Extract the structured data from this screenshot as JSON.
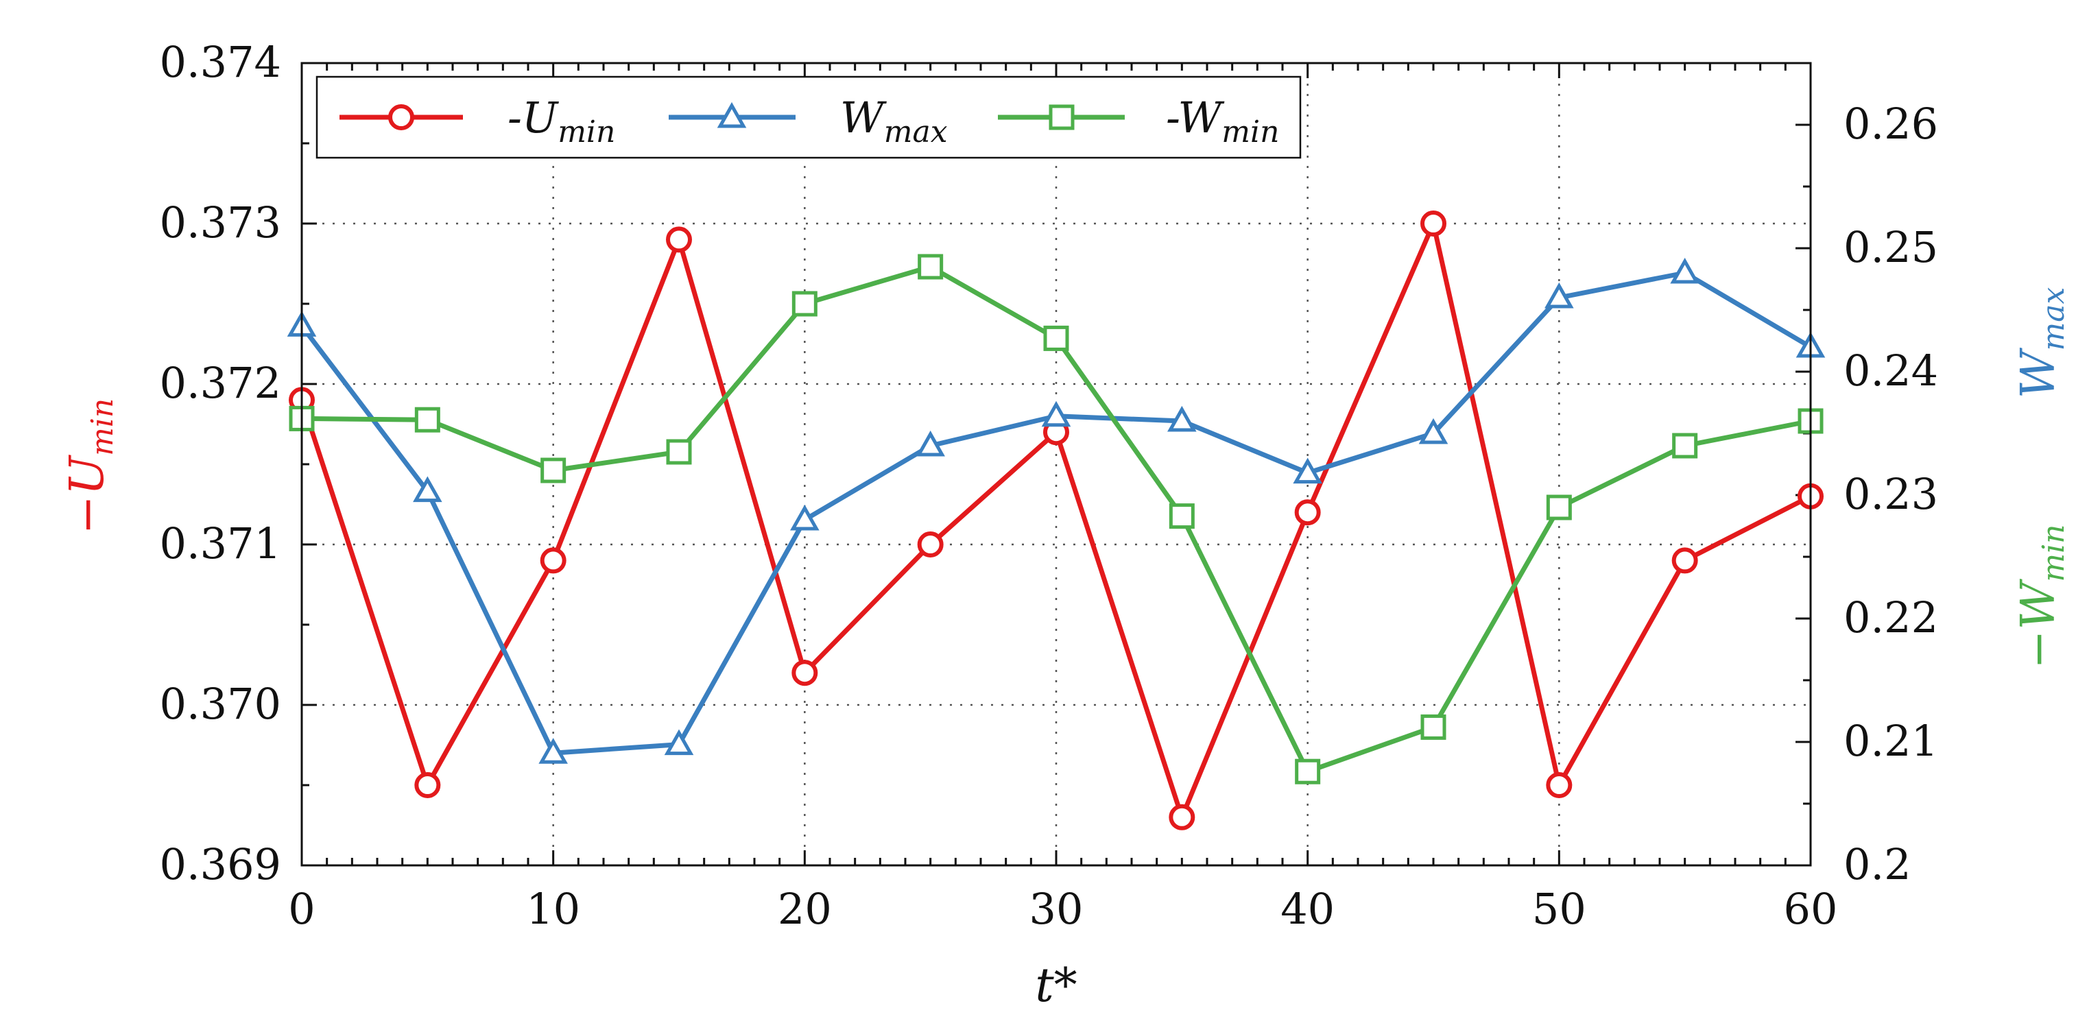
{
  "chart_data": {
    "type": "line",
    "title": "",
    "xlabel": "t*",
    "ylabel_left": {
      "base": "−U",
      "sub": "min"
    },
    "ylabel_right_top": {
      "base": "W",
      "sub": "max"
    },
    "ylabel_right_bottom": {
      "base": "−W",
      "sub": "min"
    },
    "x": [
      0,
      5,
      10,
      15,
      20,
      25,
      30,
      35,
      40,
      45,
      50,
      55,
      60
    ],
    "xlim": [
      0,
      60
    ],
    "x_ticks": [
      0,
      10,
      20,
      30,
      40,
      50,
      60
    ],
    "x_tick_labels": [
      "0",
      "10",
      "20",
      "30",
      "40",
      "50",
      "60"
    ],
    "ylim_left": [
      0.369,
      0.374
    ],
    "y_left_ticks": [
      0.369,
      0.37,
      0.371,
      0.372,
      0.373,
      0.374
    ],
    "y_left_tick_labels": [
      "0.369",
      "0.370",
      "0.371",
      "0.372",
      "0.373",
      "0.374"
    ],
    "ylim_right": [
      0.2,
      0.265
    ],
    "y_right_ticks": [
      0.2,
      0.21,
      0.22,
      0.23,
      0.24,
      0.25,
      0.26
    ],
    "y_right_tick_labels": [
      "0.2",
      "0.21",
      "0.22",
      "0.23",
      "0.24",
      "0.25",
      "0.26"
    ],
    "grid": true,
    "legend_position": "top-left",
    "series": [
      {
        "name": "-Umin",
        "legend_base": "-U",
        "legend_sub": "min",
        "axis": "left",
        "marker": "circle",
        "color": "#e31a1c",
        "values": [
          0.3719,
          0.3695,
          0.3709,
          0.3729,
          0.3702,
          0.371,
          0.3717,
          0.3693,
          0.3712,
          0.373,
          0.3695,
          0.3709,
          0.3713
        ]
      },
      {
        "name": "Wmax",
        "legend_base": "W",
        "legend_sub": "max",
        "axis": "right",
        "marker": "triangle",
        "color": "#3a7fc0",
        "values": [
          0.2437,
          0.2303,
          0.2091,
          0.2098,
          0.228,
          0.234,
          0.2364,
          0.236,
          0.2318,
          0.235,
          0.246,
          0.248,
          0.242
        ]
      },
      {
        "name": "-Wmin",
        "legend_base": "-W",
        "legend_sub": "min",
        "axis": "right",
        "marker": "square",
        "color": "#4daf4a",
        "values": [
          0.2362,
          0.2361,
          0.232,
          0.2335,
          0.2455,
          0.2485,
          0.2427,
          0.2283,
          0.2076,
          0.2112,
          0.229,
          0.234,
          0.236
        ]
      }
    ]
  }
}
